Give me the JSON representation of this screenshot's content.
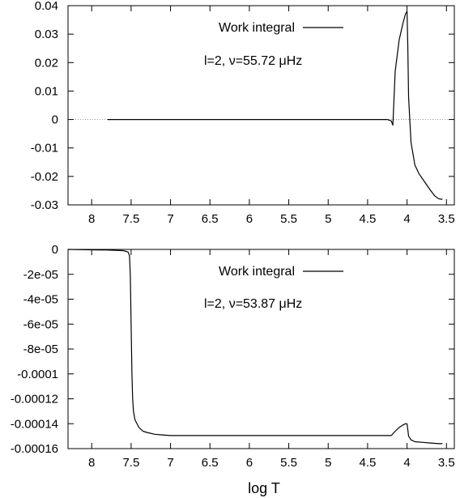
{
  "chart_data": [
    {
      "type": "line",
      "xlabel": "",
      "ylabel": "",
      "x_reversed": true,
      "xlim": [
        8.3,
        3.4
      ],
      "ylim": [
        -0.03,
        0.04
      ],
      "x_ticks": [
        8,
        7.5,
        7,
        6.5,
        6,
        5.5,
        5,
        4.5,
        4,
        3.5
      ],
      "x_tick_labels": [
        "8",
        "7.5",
        "7",
        "6.5",
        "6",
        "5.5",
        "5",
        "4.5",
        "4",
        "3.5"
      ],
      "y_ticks": [
        0.04,
        0.03,
        0.02,
        0.01,
        0,
        -0.01,
        -0.02,
        -0.03
      ],
      "y_tick_labels": [
        "0.04",
        "0.03",
        "0.02",
        "0.01",
        "0",
        "-0.01",
        "-0.02",
        "-0.03"
      ],
      "zero_line": true,
      "legend": {
        "position": "top-center",
        "entries": [
          "Work integral"
        ]
      },
      "annotation": "l=2, ν=55.72 μHz",
      "series": [
        {
          "name": "Work integral",
          "color": "#000000",
          "x": [
            7.8,
            7.0,
            6.0,
            5.0,
            4.5,
            4.25,
            4.2,
            4.18,
            4.15,
            4.1,
            4.05,
            4.02,
            4.0,
            3.99,
            3.98,
            3.95,
            3.9,
            3.85,
            3.8,
            3.75,
            3.7,
            3.65,
            3.6,
            3.57,
            3.55
          ],
          "y": [
            0.0,
            0.0,
            0.0,
            0.0,
            0.0,
            0.0,
            -0.0005,
            -0.002,
            0.017,
            0.028,
            0.034,
            0.037,
            0.038,
            0.025,
            0.008,
            -0.008,
            -0.016,
            -0.019,
            -0.021,
            -0.023,
            -0.025,
            -0.0268,
            -0.0278,
            -0.028,
            -0.028
          ]
        }
      ]
    },
    {
      "type": "line",
      "xlabel": "log T",
      "ylabel": "",
      "x_reversed": true,
      "xlim": [
        8.3,
        3.4
      ],
      "ylim": [
        -0.00016,
        0
      ],
      "x_ticks": [
        8,
        7.5,
        7,
        6.5,
        6,
        5.5,
        5,
        4.5,
        4,
        3.5
      ],
      "x_tick_labels": [
        "8",
        "7.5",
        "7",
        "6.5",
        "6",
        "5.5",
        "5",
        "4.5",
        "4",
        "3.5"
      ],
      "y_ticks": [
        0,
        -2e-05,
        -4e-05,
        -6e-05,
        -8e-05,
        -0.0001,
        -0.00012,
        -0.00014,
        -0.00016
      ],
      "y_tick_labels": [
        "0",
        "-2e-05",
        "-4e-05",
        "-6e-05",
        "-8e-05",
        "-0.0001",
        "-0.00012",
        "-0.00014",
        "-0.00016"
      ],
      "zero_line": false,
      "legend": {
        "position": "top-center",
        "entries": [
          "Work integral"
        ]
      },
      "annotation": "l=2, ν=53.87 μHz",
      "series": [
        {
          "name": "Work integral",
          "color": "#000000",
          "x": [
            8.3,
            7.8,
            7.6,
            7.54,
            7.52,
            7.51,
            7.5,
            7.49,
            7.48,
            7.47,
            7.45,
            7.4,
            7.35,
            7.3,
            7.2,
            7.1,
            7.0,
            6.5,
            6.0,
            5.0,
            4.5,
            4.2,
            4.15,
            4.1,
            4.05,
            4.02,
            4.0,
            3.99,
            3.98,
            3.95,
            3.9,
            3.8,
            3.7,
            3.6,
            3.55
          ],
          "y": [
            0.0,
            -5e-07,
            -1e-06,
            -2e-06,
            -5e-06,
            -2e-05,
            -6e-05,
            -0.0001,
            -0.00012,
            -0.00013,
            -0.000137,
            -0.000143,
            -0.000146,
            -0.000147,
            -0.0001485,
            -0.000149,
            -0.0001495,
            -0.0001495,
            -0.0001495,
            -0.0001495,
            -0.0001495,
            -0.0001495,
            -0.000146,
            -0.000143,
            -0.000141,
            -0.00014,
            -0.00014,
            -0.000145,
            -0.00015,
            -0.000153,
            -0.0001545,
            -0.000155,
            -0.0001555,
            -0.000156,
            -0.000156
          ]
        }
      ]
    }
  ]
}
